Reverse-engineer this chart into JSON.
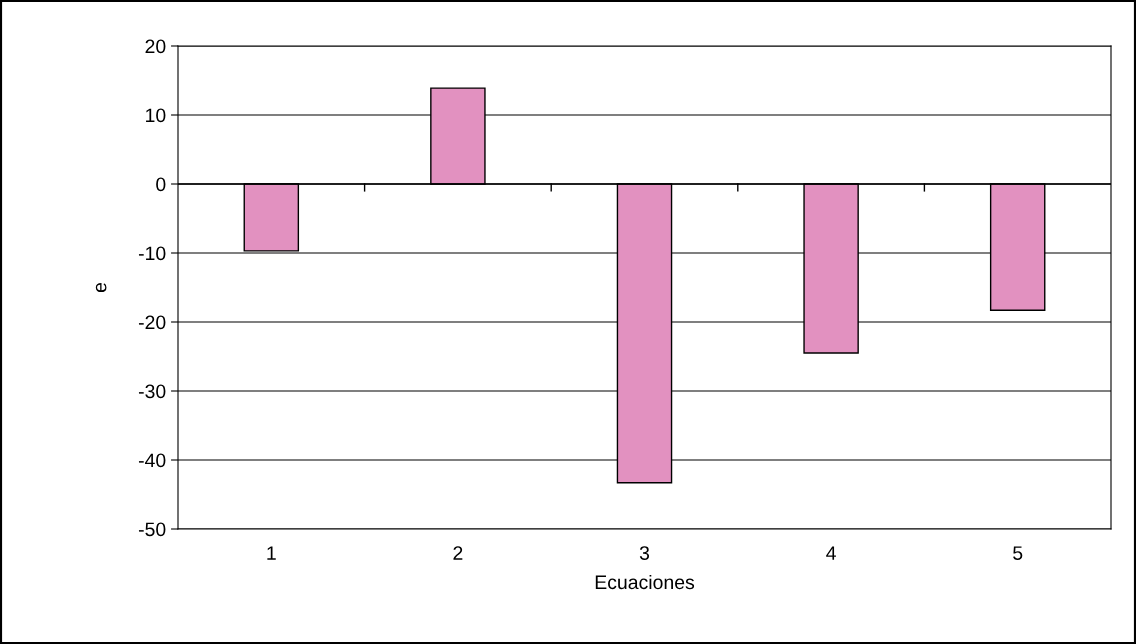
{
  "chart_data": {
    "type": "bar",
    "xlabel": "Ecuaciones",
    "ylabel": "e",
    "categories": [
      "1",
      "2",
      "3",
      "4",
      "5"
    ],
    "values": [
      -9.7,
      13.9,
      -43.3,
      -24.5,
      -18.3
    ],
    "color": "#e291c0",
    "ylim": [
      -50,
      20
    ],
    "yticks": [
      -50,
      -40,
      -30,
      -20,
      -10,
      0,
      10,
      20
    ],
    "grid": "y",
    "legend": false
  }
}
